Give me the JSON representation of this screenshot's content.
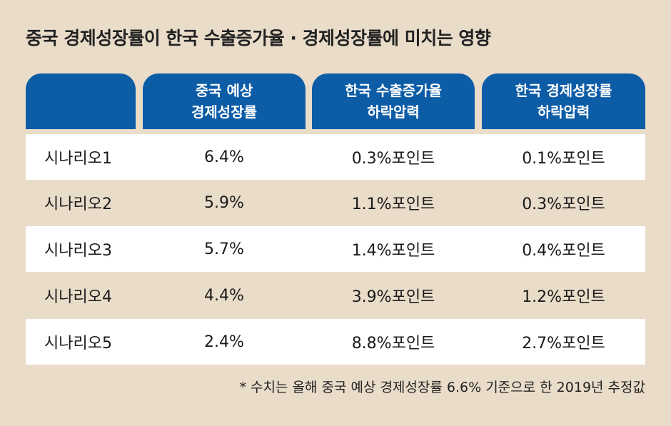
{
  "title": "중국 경제성장률이 한국 수출증가율 · 경제성장률에 미치는 영향",
  "colors": {
    "background": "#e9dcc9",
    "header": "#0d5ca6",
    "row_white": "#ffffff"
  },
  "chart_data": {
    "type": "table",
    "columns": [
      "",
      "중국 예상\n경제성장률",
      "한국 수출증가율\n하락압력",
      "한국 경제성장률\n하락압력"
    ],
    "rows": [
      [
        "시나리오1",
        "6.4%",
        "0.3%포인트",
        "0.1%포인트"
      ],
      [
        "시나리오2",
        "5.9%",
        "1.1%포인트",
        "0.3%포인트"
      ],
      [
        "시나리오3",
        "5.7%",
        "1.4%포인트",
        "0.4%포인트"
      ],
      [
        "시나리오4",
        "4.4%",
        "3.9%포인트",
        "1.2%포인트"
      ],
      [
        "시나리오5",
        "2.4%",
        "8.8%포인트",
        "2.7%포인트"
      ]
    ],
    "footnote": "* 수치는 올해 중국 예상 경제성장률 6.6% 기준으로 한 2019년 추정값"
  }
}
